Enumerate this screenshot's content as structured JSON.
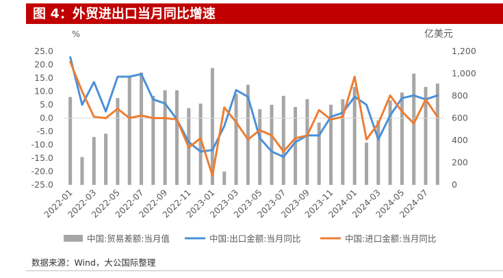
{
  "header": {
    "title": "图 4：外贸进出口当月同比增速"
  },
  "source": "数据来源：Wind，大公国际整理",
  "chart_data": {
    "type": "bar+line",
    "left_unit": "%",
    "right_unit": "亿美元",
    "left_axis": {
      "min": -25,
      "max": 25,
      "step": 5,
      "ticks": [
        "25.0",
        "20.0",
        "15.0",
        "10.0",
        "5.0",
        "0.0",
        "-5.0",
        "-10.0",
        "-15.0",
        "-20.0",
        "-25.0"
      ]
    },
    "right_axis": {
      "min": 0,
      "max": 1200,
      "step": 200,
      "ticks": [
        "1,200",
        "1,000",
        "800",
        "600",
        "400",
        "200",
        "0"
      ]
    },
    "categories": [
      "2022-01",
      "2022-02",
      "2022-03",
      "2022-04",
      "2022-05",
      "2022-06",
      "2022-07",
      "2022-08",
      "2022-09",
      "2022-10",
      "2022-11",
      "2022-12",
      "2023-01",
      "2023-02",
      "2023-03",
      "2023-04",
      "2023-05",
      "2023-06",
      "2023-07",
      "2023-08",
      "2023-09",
      "2023-10",
      "2023-11",
      "2023-12",
      "2024-01",
      "2024-02",
      "2024-03",
      "2024-04",
      "2024-05",
      "2024-06",
      "2024-07",
      "2024-08"
    ],
    "x_tick_labels": [
      "2022-01",
      "2022-03",
      "2022-05",
      "2022-07",
      "2022-09",
      "2022-11",
      "2023-01",
      "2023-03",
      "2023-05",
      "2023-07",
      "2023-09",
      "2023-11",
      "2024-01",
      "2024-03",
      "2024-05",
      "2024-07"
    ],
    "series": [
      {
        "name": "中国:贸易差额:当月值",
        "type": "bar",
        "axis": "right",
        "color": "#a6a6a6",
        "values": [
          790,
          250,
          430,
          460,
          780,
          970,
          1010,
          800,
          850,
          850,
          690,
          730,
          1050,
          120,
          820,
          900,
          680,
          720,
          800,
          700,
          770,
          560,
          720,
          770,
          880,
          380,
          580,
          760,
          830,
          1000,
          880,
          910
        ]
      },
      {
        "name": "中国:出口金额:当月同比",
        "type": "line",
        "axis": "left",
        "color": "#4a90d9",
        "values": [
          22.8,
          5.0,
          13.5,
          2.5,
          15.5,
          15.5,
          16.5,
          7.0,
          5.5,
          -0.5,
          -9.0,
          -12.5,
          -12.0,
          -3.0,
          10.5,
          8.0,
          -7.5,
          -12.5,
          -14.5,
          -9.0,
          -6.5,
          -6.5,
          0.5,
          2.0,
          8.0,
          5.0,
          -8.0,
          1.0,
          7.5,
          8.5,
          7.0,
          8.5
        ]
      },
      {
        "name": "中国:进口金额:当月同比",
        "type": "line",
        "axis": "left",
        "color": "#ed7d31",
        "values": [
          21.0,
          10.0,
          0.5,
          0.0,
          3.5,
          0.0,
          1.0,
          0.0,
          0.0,
          -0.5,
          -11.0,
          -7.5,
          -21.5,
          4.0,
          -1.5,
          -8.0,
          -4.5,
          -6.5,
          -12.5,
          -7.5,
          -6.5,
          3.0,
          -0.5,
          0.5,
          15.5,
          -8.0,
          -2.0,
          8.5,
          2.5,
          -2.0,
          7.0,
          0.5
        ]
      }
    ],
    "legend": {
      "placement": "bottom"
    },
    "grid": false
  }
}
